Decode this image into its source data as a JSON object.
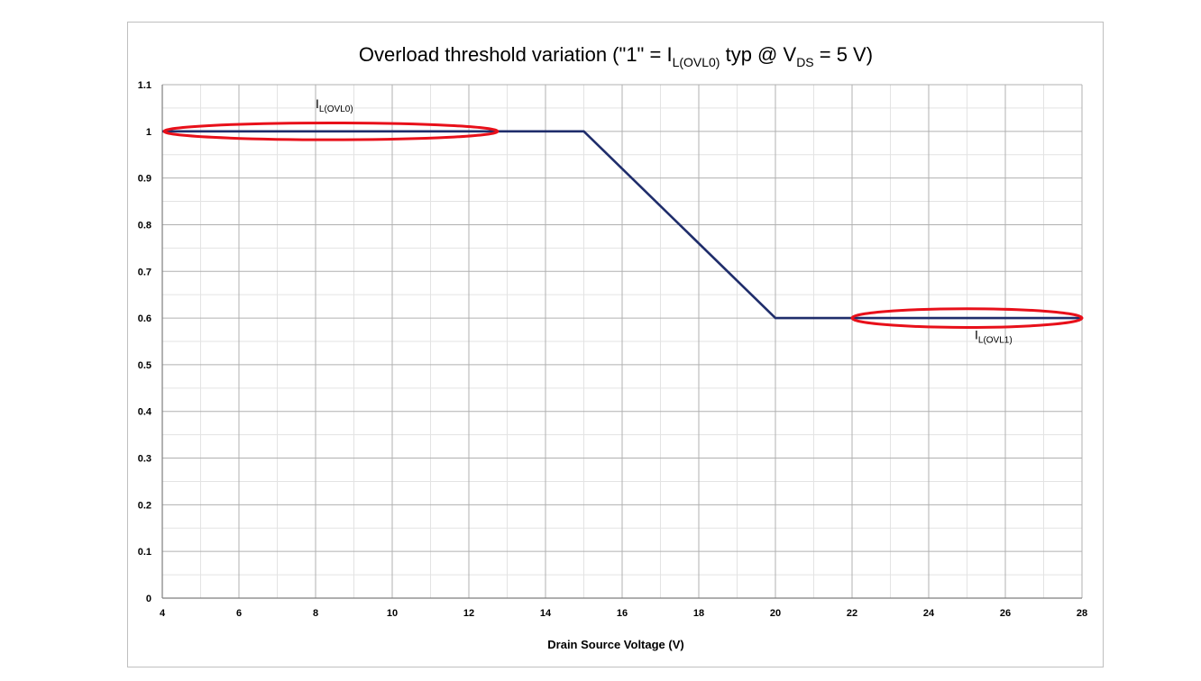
{
  "chart_data": {
    "type": "line",
    "title": {
      "main": "Overload threshold variation (\"1\" = I",
      "sub1": "L(OVL0)",
      "mid": " typ @ V",
      "sub2": "DS",
      "end": " = 5 V)"
    },
    "xlabel": "Drain Source Voltage (V)",
    "ylabel": "",
    "xlim": [
      4,
      28
    ],
    "ylim": [
      0,
      1.1
    ],
    "x_ticks": [
      4,
      6,
      8,
      10,
      12,
      14,
      16,
      18,
      20,
      22,
      24,
      26,
      28
    ],
    "y_ticks": [
      0,
      0.1,
      0.2,
      0.3,
      0.4,
      0.5,
      0.6,
      0.7,
      0.8,
      0.9,
      1,
      1.1
    ],
    "y_tick_labels": [
      "0",
      "0.1",
      "0.2",
      "0.3",
      "0.4",
      "0.5",
      "0.6",
      "0.7",
      "0.8",
      "0.9",
      "1",
      "1.1"
    ],
    "x_minor_grid": [
      5,
      7,
      9,
      11,
      13,
      15,
      17,
      19,
      21,
      23,
      25,
      27
    ],
    "y_minor_grid": [
      0.05,
      0.15,
      0.25,
      0.35,
      0.45,
      0.55,
      0.65,
      0.75,
      0.85,
      0.95,
      1.05
    ],
    "grid": true,
    "series": [
      {
        "x": [
          4,
          15,
          20,
          28
        ],
        "y": [
          1,
          1,
          0.6,
          0.6
        ],
        "color": "#1f2d6b"
      }
    ],
    "annotations": [
      {
        "label_main": "I",
        "label_sub": "L(OVL0)",
        "x": 8,
        "y": 1.05,
        "ellipse_center": [
          8.4,
          1.0
        ],
        "ellipse_half_width": 4.35,
        "ellipse_half_height": 0.018,
        "color": "#e8101a"
      },
      {
        "label_main": "I",
        "label_sub": "L(OVL1)",
        "x": 25.2,
        "y": 0.555,
        "ellipse_center": [
          25.0,
          0.6
        ],
        "ellipse_half_width": 3.0,
        "ellipse_half_height": 0.02,
        "color": "#e8101a"
      }
    ]
  }
}
